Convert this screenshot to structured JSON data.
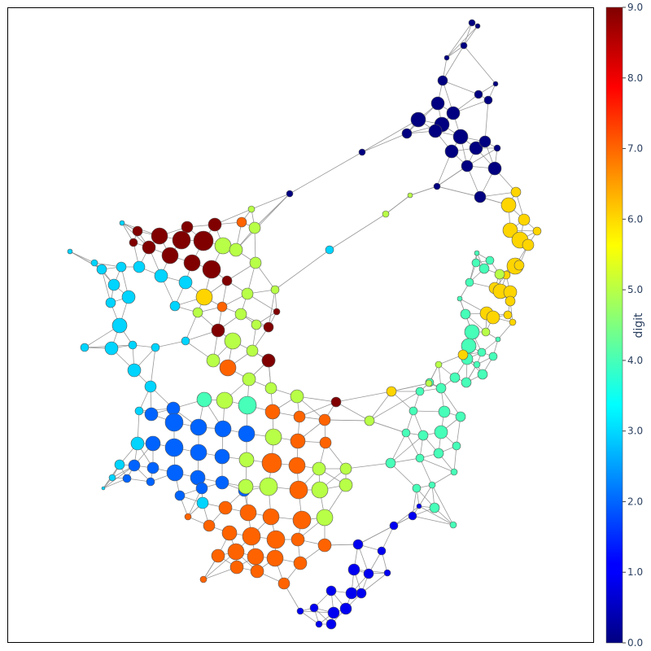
{
  "chart_data": {
    "type": "network-graph",
    "colorbar": {
      "title": "digit",
      "range": [
        0,
        9
      ],
      "ticks": [
        "0.0",
        "1.0",
        "2.0",
        "3.0",
        "4.0",
        "5.0",
        "6.0",
        "7.0",
        "8.0",
        "9.0"
      ],
      "colorscale": "jet"
    },
    "edge_color": "#999999",
    "node_outline": "#555555",
    "clusters": [
      {
        "digit": 0,
        "nodes": 34,
        "region": "top-right"
      },
      {
        "digit": 1,
        "nodes": 14,
        "region": "bottom-center"
      },
      {
        "digit": 2,
        "nodes": 28,
        "region": "lower-left"
      },
      {
        "digit": 3,
        "nodes": 22,
        "region": "left"
      },
      {
        "digit": 4,
        "nodes": 36,
        "region": "right-middle"
      },
      {
        "digit": 5,
        "nodes": 28,
        "region": "center"
      },
      {
        "digit": 6,
        "nodes": 22,
        "region": "right"
      },
      {
        "digit": 7,
        "nodes": 30,
        "region": "center-bottom"
      },
      {
        "digit": 9,
        "nodes": 18,
        "region": "upper-left"
      }
    ]
  }
}
